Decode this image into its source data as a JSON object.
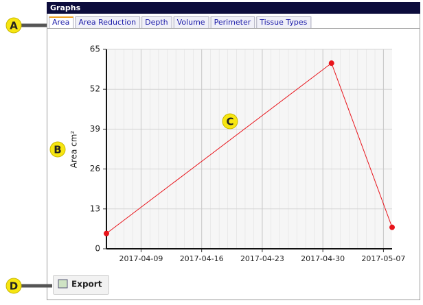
{
  "panel": {
    "title": "Graphs",
    "tabs": [
      "Area",
      "Area Reduction",
      "Depth",
      "Volume",
      "Perimeter",
      "Tissue Types"
    ],
    "export": "Export"
  },
  "callouts": [
    "A",
    "B",
    "C",
    "D"
  ],
  "chart_data": {
    "type": "line",
    "y_label": "Area cm²",
    "x": [
      "2017-04-05",
      "2017-05-01",
      "2017-05-08"
    ],
    "series": [
      {
        "name": "Area",
        "color": "#e8141b",
        "values": [
          5,
          60.5,
          7
        ]
      }
    ],
    "xlim": [
      "2017-04-05",
      "2017-05-08"
    ],
    "xticks": [
      "2017-04-09",
      "2017-04-16",
      "2017-04-23",
      "2017-04-30",
      "2017-05-07"
    ],
    "ylim": [
      0,
      65
    ],
    "yticks": [
      0,
      13,
      26,
      39,
      52,
      65
    ],
    "grid": true
  }
}
